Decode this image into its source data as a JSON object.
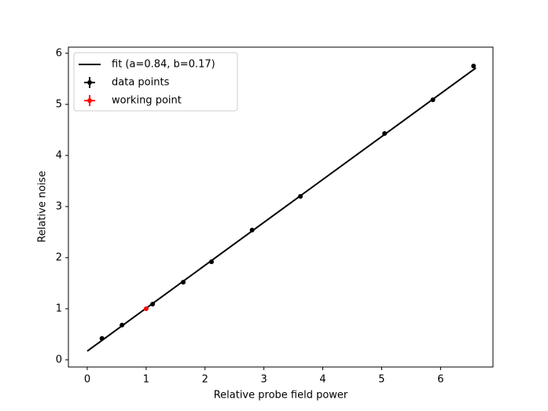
{
  "chart_data": {
    "type": "scatter",
    "xlabel": "Relative probe field power",
    "ylabel": "Relative noise",
    "xlim": [
      -0.32,
      6.89
    ],
    "ylim": [
      -0.14,
      6.12
    ],
    "xticks": [
      0,
      1,
      2,
      3,
      4,
      5,
      6
    ],
    "yticks": [
      0,
      1,
      2,
      3,
      4,
      5,
      6
    ],
    "legend": "upper left",
    "grid": false,
    "series": [
      {
        "name": "fit (a=0.84, b=0.17)",
        "color": "#000000",
        "style": "line",
        "x": [
          0,
          6.6
        ],
        "values": [
          0.17,
          5.714
        ]
      },
      {
        "name": "data points",
        "color": "#000000",
        "style": "errorbar",
        "x": [
          0.25,
          0.59,
          1.11,
          1.63,
          2.11,
          2.8,
          3.62,
          5.05,
          5.87,
          6.56
        ],
        "values": [
          0.42,
          0.68,
          1.09,
          1.52,
          1.92,
          2.54,
          3.2,
          4.43,
          5.09,
          5.75
        ]
      },
      {
        "name": "working point",
        "color": "#ff0000",
        "style": "errorbar",
        "x": [
          1.0
        ],
        "values": [
          1.0
        ]
      }
    ]
  }
}
